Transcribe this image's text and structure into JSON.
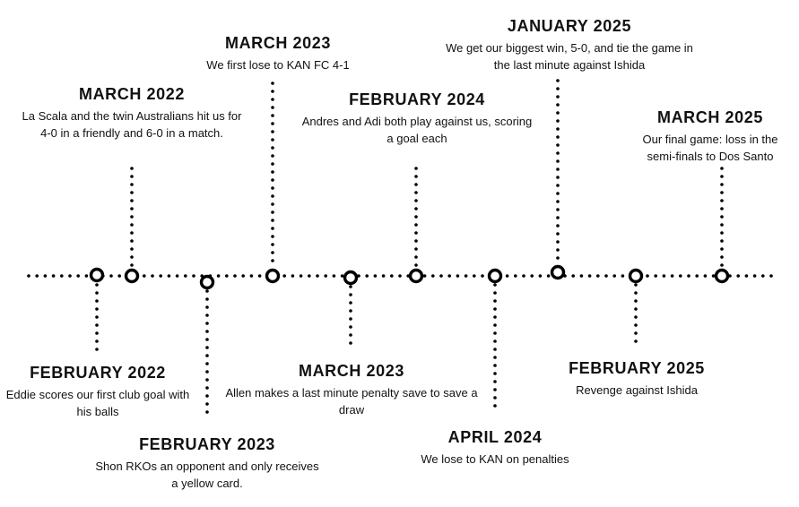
{
  "events": [
    {
      "id": "feb-2022",
      "title": "FEBRUARY 2022",
      "desc": "Eddie scores our first club goal with his balls"
    },
    {
      "id": "mar-2022",
      "title": "MARCH 2022",
      "desc": "La Scala and the twin Australians hit us for 4-0 in a friendly and 6-0 in a match."
    },
    {
      "id": "feb-2023",
      "title": "FEBRUARY 2023",
      "desc": "Shon RKOs an opponent and only receives a yellow card."
    },
    {
      "id": "mar-2023-top",
      "title": "MARCH 2023",
      "desc": "We first lose to KAN FC 4-1"
    },
    {
      "id": "mar-2023-bottom",
      "title": "MARCH 2023",
      "desc": "Allen makes a last minute penalty save to save a draw"
    },
    {
      "id": "feb-2024",
      "title": "FEBRUARY 2024",
      "desc": "Andres and Adi both play against us, scoring a goal each"
    },
    {
      "id": "apr-2024",
      "title": "APRIL 2024",
      "desc": "We lose to KAN on penalties"
    },
    {
      "id": "jan-2025",
      "title": "JANUARY 2025",
      "desc": "We get our biggest win, 5-0, and tie the game in the last minute against Ishida"
    },
    {
      "id": "feb-2025",
      "title": "FEBRUARY 2025",
      "desc": "Revenge against Ishida"
    },
    {
      "id": "mar-2025",
      "title": "MARCH 2025",
      "desc": "Our final game: loss in the semi-finals to Dos Santo"
    }
  ]
}
